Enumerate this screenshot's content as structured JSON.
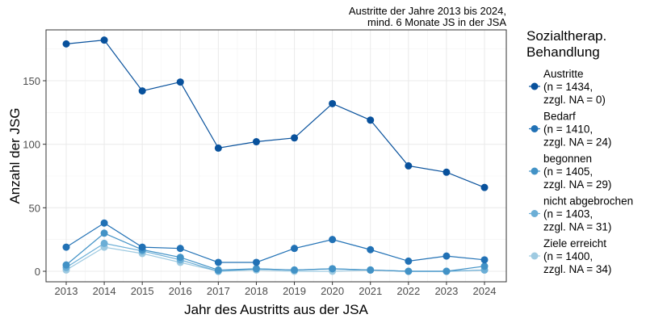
{
  "chart_data": {
    "type": "line",
    "title": "Austritte der Jahre 2013 bis 2024,",
    "subtitle": "mind. 6 Monate JS in der JSA",
    "xlabel": "Jahr des Austritts aus der JSA",
    "ylabel": "Anzahl der JSG",
    "x": [
      2013,
      2014,
      2015,
      2016,
      2017,
      2018,
      2019,
      2020,
      2021,
      2022,
      2023,
      2024
    ],
    "ylim": [
      -8,
      190
    ],
    "yticks": [
      0,
      50,
      100,
      150
    ],
    "legend_title": [
      "Sozialtherap.",
      "Behandlung"
    ],
    "legend_position": "right",
    "series": [
      {
        "name": "Austritte",
        "label": [
          "Austritte",
          "(n = 1434,",
          "zzgl. NA = 0)"
        ],
        "color": "#08519c",
        "values": [
          179,
          182,
          142,
          149,
          97,
          102,
          105,
          132,
          119,
          83,
          78,
          66
        ]
      },
      {
        "name": "Bedarf",
        "label": [
          "Bedarf",
          "(n = 1410,",
          "zzgl. NA = 24)"
        ],
        "color": "#2171b5",
        "values": [
          19,
          38,
          19,
          18,
          7,
          7,
          18,
          25,
          17,
          8,
          12,
          9
        ]
      },
      {
        "name": "begonnen",
        "label": [
          "begonnen",
          "(n = 1405,",
          "zzgl. NA = 29)"
        ],
        "color": "#4292c6",
        "values": [
          5,
          30,
          17,
          11,
          1,
          2,
          1,
          2,
          1,
          0,
          0,
          4
        ]
      },
      {
        "name": "nicht abgebrochen",
        "label": [
          "nicht abgebrochen",
          "(n = 1403,",
          "zzgl. NA = 31)"
        ],
        "color": "#6baed6",
        "values": [
          3,
          22,
          16,
          9,
          0,
          2,
          1,
          2,
          1,
          0,
          0,
          1
        ]
      },
      {
        "name": "Ziele erreicht",
        "label": [
          "Ziele erreicht",
          "(n = 1400,",
          "zzgl. NA = 34)"
        ],
        "color": "#9ecae1",
        "values": [
          1,
          19,
          14,
          7,
          0,
          1,
          0,
          0,
          1,
          0,
          0,
          1
        ]
      }
    ]
  }
}
